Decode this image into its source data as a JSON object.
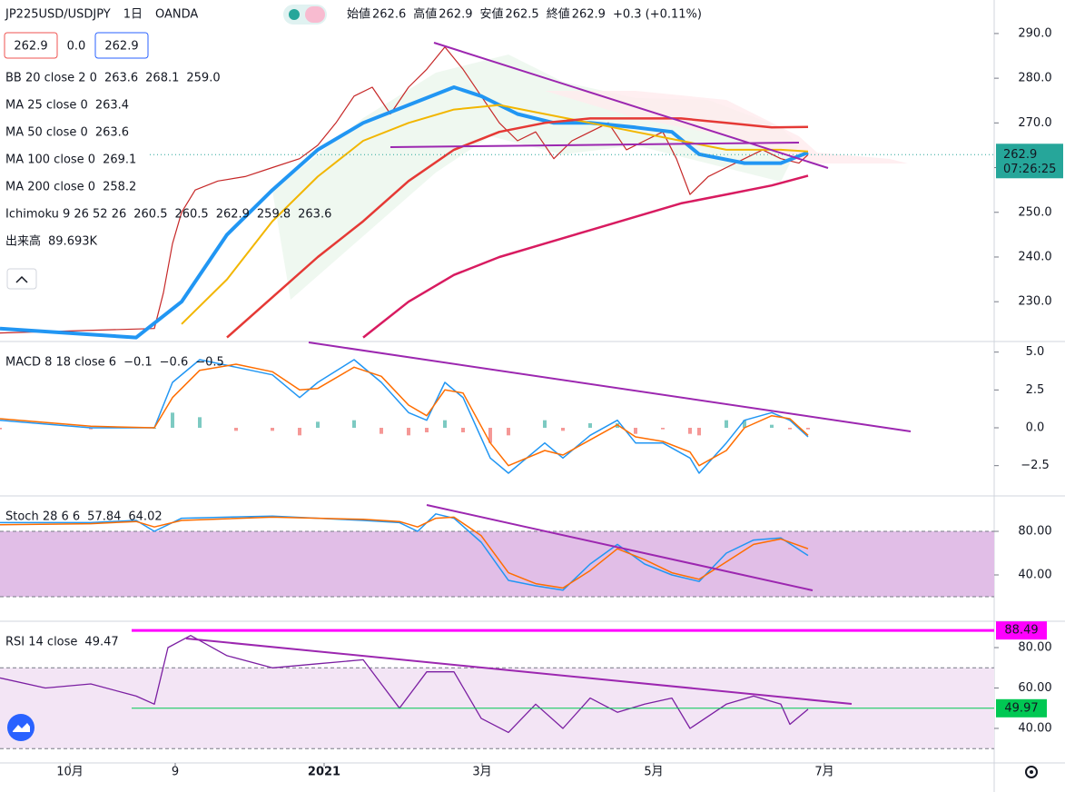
{
  "header": {
    "symbol": "JP225USD/USDJPY",
    "interval": "1日",
    "source": "OANDA",
    "ohlc": [
      {
        "label": "始値",
        "value": "262.6"
      },
      {
        "label": "高値",
        "value": "262.9"
      },
      {
        "label": "安値",
        "value": "262.5"
      },
      {
        "label": "終値",
        "value": "262.9"
      }
    ],
    "change": "+0.3 (+0.11%)",
    "bid": "262.9",
    "spread": "0.0",
    "ask": "262.9"
  },
  "chart_data": [
    {
      "type": "line",
      "legend": [
        [
          {
            "text": "BB 20 close 2 0",
            "color": "#131722"
          },
          {
            "text": "263.6",
            "color": "#b71c1c"
          },
          {
            "text": "268.1",
            "color": "#00897b"
          },
          {
            "text": "259.0",
            "color": "#00897b"
          }
        ],
        [
          {
            "text": "MA 25 close 0",
            "color": "#131722"
          },
          {
            "text": "263.4",
            "color": "#2196f3"
          }
        ],
        [
          {
            "text": "MA 50 close 0",
            "color": "#131722"
          },
          {
            "text": "263.6",
            "color": "#e6a800"
          }
        ],
        [
          {
            "text": "MA 100 close 0",
            "color": "#131722"
          },
          {
            "text": "269.1",
            "color": "#e53935"
          }
        ],
        [
          {
            "text": "MA 200 close 0",
            "color": "#131722"
          },
          {
            "text": "258.2",
            "color": "#d81b60"
          }
        ],
        [
          {
            "text": "Ichimoku 9 26 52 26",
            "color": "#131722"
          },
          {
            "text": "260.5",
            "color": "#2196f3"
          },
          {
            "text": "260.5",
            "color": "#8b1a1a"
          },
          {
            "text": "262.9",
            "color": "#2e7d32"
          },
          {
            "text": "259.8",
            "color": "#43a047"
          },
          {
            "text": "263.6",
            "color": "#e53935"
          }
        ],
        [
          {
            "text": "出来高",
            "color": "#131722"
          },
          {
            "text": "89.693K",
            "color": "#00897b"
          }
        ]
      ],
      "xlim": [
        0,
        219
      ],
      "xticks": [
        {
          "value": 15.4,
          "label": "10月"
        },
        {
          "value": 38.6,
          "label": "9"
        },
        {
          "value": 71.4,
          "label": "2021"
        },
        {
          "value": 106.2,
          "label": "3月"
        },
        {
          "value": 144,
          "label": "5月"
        },
        {
          "value": 181.6,
          "label": "7月"
        }
      ],
      "ylim": [
        221.3,
        297.5
      ],
      "yticks": [
        {
          "value": 290,
          "label": "290.0"
        },
        {
          "value": 280,
          "label": "280.0"
        },
        {
          "value": 270,
          "label": "270.0"
        },
        {
          "value": 260,
          "label": "260.0"
        },
        {
          "value": 250,
          "label": "250.0"
        },
        {
          "value": 240,
          "label": "240.0"
        },
        {
          "value": 230,
          "label": "230.0"
        }
      ],
      "last": {
        "value": 262.9,
        "label": "262.9",
        "countdown": "07:26:25",
        "color": "#26a69a"
      },
      "series": [
        {
          "color": "#c62828",
          "width": 1.2,
          "x": [
            0,
            34,
            36,
            38,
            40,
            43,
            48,
            54,
            60,
            66,
            70,
            74,
            78,
            82,
            86,
            90,
            94,
            98,
            102,
            106,
            110,
            114,
            118,
            122,
            126,
            130,
            134,
            138,
            142,
            146,
            149,
            152,
            156,
            160,
            164,
            168,
            172,
            176,
            178
          ],
          "values": [
            223,
            224,
            232,
            243,
            250,
            255,
            257,
            258,
            260,
            262,
            265,
            270,
            276,
            278,
            272,
            278,
            282,
            287,
            282,
            276,
            270,
            266,
            268,
            262,
            266,
            268,
            270,
            264,
            266,
            268,
            262,
            254,
            258,
            260,
            262,
            264,
            262,
            261,
            262.9
          ]
        },
        {
          "color": "#2196f3",
          "width": 4,
          "x": [
            0,
            30,
            40,
            50,
            60,
            70,
            80,
            90,
            100,
            106,
            114,
            122,
            130,
            140,
            148,
            154,
            164,
            172,
            178
          ],
          "values": [
            224,
            222,
            230,
            245,
            255,
            264,
            270,
            274,
            278,
            276,
            272,
            270,
            270,
            269,
            268,
            263,
            261,
            261,
            263.4
          ]
        },
        {
          "color": "#f2b600",
          "width": 2,
          "x": [
            40,
            50,
            60,
            70,
            80,
            90,
            100,
            110,
            120,
            130,
            140,
            150,
            160,
            172,
            178
          ],
          "values": [
            225,
            235,
            248,
            258,
            266,
            270,
            273,
            274,
            272,
            270,
            268,
            266,
            264,
            264,
            263.6
          ]
        },
        {
          "color": "#e53935",
          "width": 2.5,
          "x": [
            50,
            60,
            70,
            80,
            90,
            100,
            110,
            120,
            130,
            140,
            150,
            160,
            170,
            178
          ],
          "values": [
            222,
            231,
            240,
            248,
            257,
            264,
            268,
            270,
            271,
            271,
            271,
            270,
            269,
            269.1
          ]
        },
        {
          "color": "#d81b60",
          "width": 2.5,
          "x": [
            80,
            90,
            100,
            110,
            120,
            130,
            140,
            150,
            160,
            170,
            178
          ],
          "values": [
            222,
            230,
            236,
            240,
            243,
            246,
            249,
            252,
            254,
            256,
            258.2
          ]
        }
      ]
    },
    {
      "type": "macd",
      "legend": [
        [
          {
            "text": "MACD 8 18 close 6",
            "color": "#131722"
          },
          {
            "text": "−0.1",
            "color": "#f48fb1"
          },
          {
            "text": "−0.6",
            "color": "#2196f3"
          },
          {
            "text": "−0.5",
            "color": "#ff6d00"
          }
        ]
      ],
      "ylim": [
        -4.44,
        5.64
      ],
      "yticks": [
        {
          "value": 5,
          "label": "5.0"
        },
        {
          "value": 2.5,
          "label": "2.5"
        },
        {
          "value": 0,
          "label": "0.0"
        },
        {
          "value": -2.5,
          "label": "−2.5"
        }
      ],
      "x": [
        0,
        20,
        34,
        38,
        44,
        52,
        60,
        66,
        70,
        78,
        84,
        90,
        94,
        98,
        102,
        108,
        112,
        120,
        124,
        130,
        136,
        140,
        146,
        152,
        154,
        160,
        164,
        170,
        174,
        178
      ],
      "histogram": [
        -0.1,
        -0.1,
        0,
        1,
        0.7,
        -0.2,
        -0.2,
        -0.5,
        0.4,
        0.5,
        -0.4,
        -0.5,
        -0.3,
        0.5,
        -0.3,
        -1,
        -0.5,
        0.5,
        -0.2,
        0.3,
        0.3,
        -0.4,
        -0.1,
        -0.4,
        -0.5,
        0.5,
        0.5,
        0.2,
        -0.1,
        -0.1
      ],
      "histogram_colors": {
        "up": "#26a69a",
        "down": "#ef5350"
      },
      "series": [
        {
          "color": "#2196f3",
          "width": 1.5,
          "values": [
            0.5,
            0,
            0,
            3,
            4.5,
            4,
            3.5,
            2,
            3,
            4.5,
            3,
            1,
            0.5,
            3,
            2,
            -2,
            -3,
            -1,
            -2,
            -0.5,
            0.5,
            -1,
            -1,
            -2,
            -3,
            -1,
            0.5,
            1,
            0.5,
            -0.6
          ]
        },
        {
          "color": "#ff6d00",
          "width": 1.5,
          "values": [
            0.6,
            0.1,
            0,
            2,
            3.8,
            4.2,
            3.7,
            2.5,
            2.6,
            4,
            3.4,
            1.5,
            0.8,
            2.5,
            2.3,
            -1,
            -2.5,
            -1.5,
            -1.8,
            -0.8,
            0.2,
            -0.6,
            -0.9,
            -1.6,
            -2.5,
            -1.5,
            0,
            0.8,
            0.6,
            -0.5
          ]
        }
      ]
    },
    {
      "type": "stoch",
      "legend": [
        [
          {
            "text": "Stoch 28 6 6",
            "color": "#131722"
          },
          {
            "text": "57.84",
            "color": "#2196f3"
          },
          {
            "text": "64.02",
            "color": "#ff6d00"
          }
        ]
      ],
      "ylim": [
        -1.67,
        111.7
      ],
      "yticks": [
        {
          "value": 80,
          "label": "80.00"
        },
        {
          "value": 40,
          "label": "40.00"
        }
      ],
      "band": [
        20,
        80
      ],
      "band_color": "#e1bee7",
      "x": [
        0,
        20,
        30,
        34,
        40,
        60,
        80,
        88,
        92,
        96,
        100,
        106,
        112,
        118,
        124,
        130,
        136,
        142,
        148,
        154,
        160,
        166,
        172,
        178
      ],
      "series": [
        {
          "color": "#2196f3",
          "width": 1.5,
          "values": [
            88,
            88,
            90,
            80,
            92,
            94,
            90,
            88,
            80,
            96,
            92,
            70,
            35,
            30,
            26,
            50,
            68,
            50,
            40,
            34,
            60,
            72,
            74,
            57.84
          ]
        },
        {
          "color": "#ff6d00",
          "width": 1.5,
          "values": [
            86,
            87,
            89,
            84,
            90,
            93,
            91,
            89,
            84,
            92,
            93,
            76,
            42,
            32,
            28,
            44,
            64,
            54,
            42,
            36,
            52,
            68,
            73,
            64.02
          ]
        }
      ]
    },
    {
      "type": "rsi",
      "legend": [
        [
          {
            "text": "RSI 14 close",
            "color": "#131722"
          },
          {
            "text": "49.47",
            "color": "#7b1fa2"
          }
        ]
      ],
      "ylim": [
        22.9,
        92.6
      ],
      "yticks": [
        {
          "value": 80,
          "label": "80.00"
        },
        {
          "value": 60,
          "label": "60.00"
        },
        {
          "value": 40,
          "label": "40.00"
        }
      ],
      "band": [
        30,
        70
      ],
      "band_color": "#f3e5f5",
      "levels": [
        {
          "value": 88.49,
          "color": "#ff00ff"
        },
        {
          "value": 49.97,
          "color": "#00c853"
        }
      ],
      "x": [
        0,
        10,
        20,
        30,
        34,
        37,
        42,
        50,
        60,
        70,
        80,
        88,
        94,
        100,
        106,
        112,
        118,
        124,
        130,
        136,
        142,
        148,
        152,
        160,
        166,
        172,
        174,
        178
      ],
      "series": [
        {
          "color": "#7b1fa2",
          "width": 1.3,
          "values": [
            65,
            60,
            62,
            56,
            52,
            80,
            86,
            76,
            70,
            72,
            74,
            50,
            68,
            68,
            45,
            38,
            52,
            40,
            55,
            48,
            52,
            55,
            40,
            52,
            56,
            52,
            42,
            49.47
          ]
        }
      ]
    }
  ]
}
